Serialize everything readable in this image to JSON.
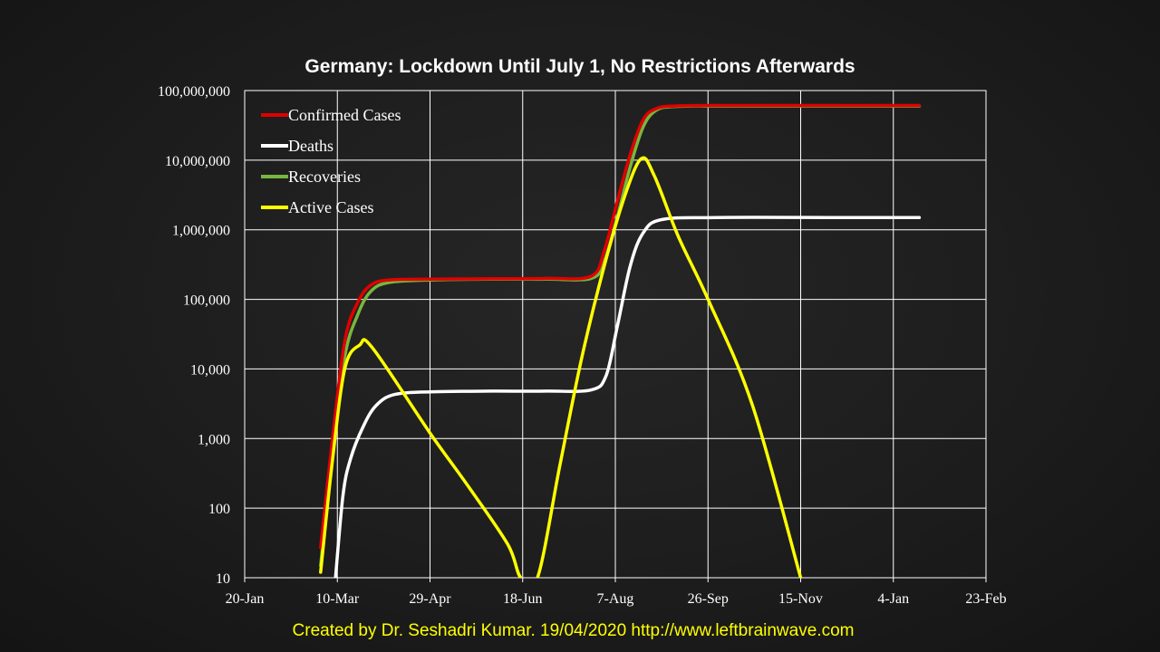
{
  "chart_data": {
    "type": "line",
    "title": "Germany: Lockdown Until July 1, No Restrictions Afterwards",
    "xlabel": "",
    "ylabel": "",
    "y_scale": "log",
    "ylim": [
      10,
      100000000
    ],
    "y_ticks": [
      {
        "value": 10,
        "label": "10"
      },
      {
        "value": 100,
        "label": "100"
      },
      {
        "value": 1000,
        "label": "1,000"
      },
      {
        "value": 10000,
        "label": "10,000"
      },
      {
        "value": 100000,
        "label": "100,000"
      },
      {
        "value": 1000000,
        "label": "1,000,000"
      },
      {
        "value": 10000000,
        "label": "10,000,000"
      },
      {
        "value": 100000000,
        "label": "100,000,000"
      }
    ],
    "xlim": [
      "2020-01-20",
      "2021-02-23"
    ],
    "x_ticks": [
      {
        "date": "2020-01-20",
        "label": "20-Jan"
      },
      {
        "date": "2020-03-10",
        "label": "10-Mar"
      },
      {
        "date": "2020-04-29",
        "label": "29-Apr"
      },
      {
        "date": "2020-06-18",
        "label": "18-Jun"
      },
      {
        "date": "2020-08-07",
        "label": "7-Aug"
      },
      {
        "date": "2020-09-26",
        "label": "26-Sep"
      },
      {
        "date": "2020-11-15",
        "label": "15-Nov"
      },
      {
        "date": "2021-01-04",
        "label": "4-Jan"
      },
      {
        "date": "2021-02-23",
        "label": "23-Feb"
      }
    ],
    "grid": true,
    "legend_position": "top-left",
    "series": [
      {
        "name": "Confirmed Cases",
        "color": "#e00000",
        "points": [
          [
            "2020-03-01",
            27
          ],
          [
            "2020-03-07",
            800
          ],
          [
            "2020-03-14",
            25000
          ],
          [
            "2020-03-21",
            90000
          ],
          [
            "2020-03-28",
            160000
          ],
          [
            "2020-04-07",
            190000
          ],
          [
            "2020-05-01",
            195000
          ],
          [
            "2020-06-01",
            198000
          ],
          [
            "2020-07-01",
            200000
          ],
          [
            "2020-07-25",
            215000
          ],
          [
            "2020-08-01",
            500000
          ],
          [
            "2020-08-08",
            2500000
          ],
          [
            "2020-08-15",
            12000000
          ],
          [
            "2020-08-22",
            38000000
          ],
          [
            "2020-08-29",
            55000000
          ],
          [
            "2020-09-08",
            60000000
          ],
          [
            "2020-10-01",
            61000000
          ],
          [
            "2020-11-15",
            61000000
          ],
          [
            "2021-01-18",
            61000000
          ]
        ]
      },
      {
        "name": "Deaths",
        "color": "#ffffff",
        "points": [
          [
            "2020-03-09",
            10
          ],
          [
            "2020-03-13",
            150
          ],
          [
            "2020-03-17",
            500
          ],
          [
            "2020-03-24",
            1500
          ],
          [
            "2020-03-31",
            3000
          ],
          [
            "2020-04-10",
            4300
          ],
          [
            "2020-05-01",
            4700
          ],
          [
            "2020-06-01",
            4800
          ],
          [
            "2020-07-01",
            4800
          ],
          [
            "2020-07-25",
            5000
          ],
          [
            "2020-08-02",
            8000
          ],
          [
            "2020-08-08",
            40000
          ],
          [
            "2020-08-15",
            300000
          ],
          [
            "2020-08-22",
            900000
          ],
          [
            "2020-09-01",
            1400000
          ],
          [
            "2020-10-01",
            1500000
          ],
          [
            "2020-12-01",
            1500000
          ],
          [
            "2021-01-18",
            1500000
          ]
        ]
      },
      {
        "name": "Recoveries",
        "color": "#77b73e",
        "points": [
          [
            "2020-03-01",
            15
          ],
          [
            "2020-03-07",
            500
          ],
          [
            "2020-03-14",
            15000
          ],
          [
            "2020-03-21",
            60000
          ],
          [
            "2020-03-28",
            130000
          ],
          [
            "2020-04-07",
            175000
          ],
          [
            "2020-05-01",
            190000
          ],
          [
            "2020-06-01",
            195000
          ],
          [
            "2020-07-01",
            195000
          ],
          [
            "2020-07-25",
            200000
          ],
          [
            "2020-08-01",
            350000
          ],
          [
            "2020-08-08",
            1500000
          ],
          [
            "2020-08-15",
            8000000
          ],
          [
            "2020-08-22",
            30000000
          ],
          [
            "2020-08-29",
            52000000
          ],
          [
            "2020-09-08",
            59000000
          ],
          [
            "2020-10-01",
            60000000
          ],
          [
            "2020-11-15",
            60000000
          ],
          [
            "2021-01-18",
            60000000
          ]
        ]
      },
      {
        "name": "Active Cases",
        "color": "#ffff00",
        "points": [
          [
            "2020-03-01",
            12
          ],
          [
            "2020-03-07",
            400
          ],
          [
            "2020-03-14",
            10000
          ],
          [
            "2020-03-22",
            22000
          ],
          [
            "2020-03-29",
            20000
          ],
          [
            "2020-04-29",
            1200
          ],
          [
            "2020-05-20",
            200
          ],
          [
            "2020-06-10",
            30
          ],
          [
            "2020-06-17",
            10
          ],
          [
            "2020-06-26",
            10
          ],
          [
            "2020-07-08",
            400
          ],
          [
            "2020-07-20",
            15000
          ],
          [
            "2020-08-01",
            300000
          ],
          [
            "2020-08-12",
            3000000
          ],
          [
            "2020-08-21",
            10500000
          ],
          [
            "2020-08-28",
            6000000
          ],
          [
            "2020-09-10",
            800000
          ],
          [
            "2020-09-26",
            100000
          ],
          [
            "2020-10-20",
            3000
          ],
          [
            "2020-11-15",
            10
          ]
        ]
      }
    ]
  },
  "footer": {
    "credit": "Created by Dr. Seshadri Kumar. 19/04/2020 http://www.leftbrainwave.com"
  }
}
